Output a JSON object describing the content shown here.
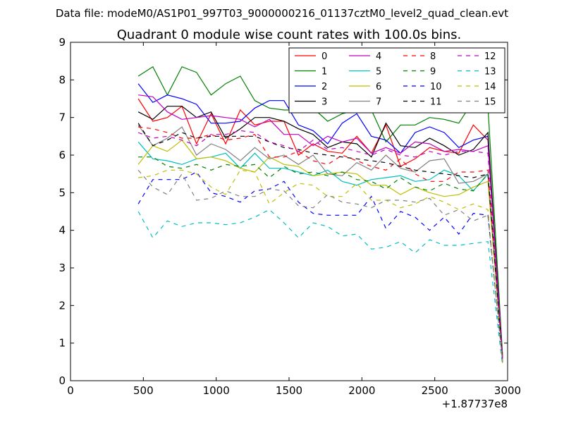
{
  "figure": {
    "suptitle": "Data file: modeM0/AS1P01_997T03_9000000216_01137cztM0_level2_quad_clean.evt"
  },
  "chart_data": {
    "type": "line",
    "title": "Quadrant 0 module wise count rates with 100.0s bins.",
    "xlabel": "",
    "ylabel": "",
    "x_offset_label": "+1.87737e8",
    "xlim": [
      0,
      3000
    ],
    "ylim": [
      0,
      9
    ],
    "xticks": [
      0,
      500,
      1000,
      1500,
      2000,
      2500,
      3000
    ],
    "yticks": [
      0,
      1,
      2,
      3,
      4,
      5,
      6,
      7,
      8,
      9
    ],
    "grid": false,
    "legend_position": "top-right",
    "legend_columns": 4,
    "x": [
      465,
      565,
      665,
      765,
      865,
      965,
      1065,
      1165,
      1265,
      1365,
      1465,
      1565,
      1665,
      1765,
      1865,
      1965,
      2065,
      2165,
      2265,
      2365,
      2465,
      2565,
      2665,
      2765,
      2865,
      2965
    ],
    "series": [
      {
        "name": "0",
        "color": "#ff0000",
        "dash": false,
        "values": [
          7.5,
          6.9,
          7.0,
          7.3,
          6.3,
          7.1,
          6.3,
          7.2,
          6.8,
          6.9,
          6.9,
          6.0,
          6.3,
          6.1,
          6.05,
          6.5,
          6.05,
          6.8,
          5.7,
          5.9,
          6.2,
          6.1,
          6.05,
          6.8,
          6.4,
          0.6
        ]
      },
      {
        "name": "1",
        "color": "#008000",
        "dash": false,
        "values": [
          8.1,
          8.35,
          7.6,
          8.35,
          8.2,
          7.6,
          7.9,
          8.1,
          7.45,
          7.25,
          7.2,
          7.2,
          7.25,
          6.9,
          7.1,
          7.2,
          7.2,
          6.35,
          6.8,
          6.8,
          7.0,
          6.95,
          6.85,
          7.45,
          7.3,
          0.7
        ]
      },
      {
        "name": "2",
        "color": "#0000ff",
        "dash": false,
        "values": [
          7.9,
          7.4,
          7.6,
          7.5,
          7.35,
          6.85,
          6.85,
          6.9,
          7.25,
          7.45,
          7.45,
          6.8,
          6.65,
          6.3,
          6.85,
          7.1,
          6.5,
          6.4,
          6.05,
          6.6,
          6.75,
          6.6,
          6.2,
          6.4,
          6.5,
          0.5
        ]
      },
      {
        "name": "3",
        "color": "#000000",
        "dash": false,
        "values": [
          7.15,
          6.95,
          7.3,
          7.3,
          7.0,
          7.15,
          6.45,
          6.7,
          7.0,
          7.0,
          6.9,
          6.7,
          6.55,
          6.2,
          6.35,
          6.3,
          5.95,
          6.85,
          6.25,
          6.2,
          6.45,
          6.25,
          6.0,
          6.15,
          6.6,
          0.6
        ]
      },
      {
        "name": "4",
        "color": "#bf00bf",
        "dash": false,
        "values": [
          7.6,
          7.55,
          7.15,
          6.95,
          7.0,
          7.05,
          7.0,
          6.95,
          6.75,
          6.95,
          6.55,
          6.55,
          6.25,
          6.5,
          6.35,
          6.45,
          6.05,
          6.2,
          6.05,
          6.35,
          6.3,
          6.1,
          6.15,
          6.1,
          6.25,
          0.65
        ]
      },
      {
        "name": "5",
        "color": "#00bfbf",
        "dash": false,
        "values": [
          6.35,
          5.9,
          5.85,
          5.75,
          5.9,
          5.95,
          6.05,
          5.65,
          6.05,
          5.65,
          5.65,
          5.55,
          5.45,
          5.6,
          5.3,
          5.2,
          5.35,
          5.4,
          5.45,
          5.3,
          5.35,
          5.6,
          5.45,
          5.05,
          5.5,
          0.55
        ]
      },
      {
        "name": "6",
        "color": "#bfbf00",
        "dash": false,
        "values": [
          5.75,
          6.25,
          6.1,
          6.4,
          5.9,
          5.95,
          5.85,
          5.65,
          5.55,
          5.95,
          5.75,
          5.7,
          5.45,
          5.5,
          5.55,
          5.5,
          5.2,
          5.2,
          4.95,
          5.15,
          5.0,
          4.9,
          4.95,
          5.15,
          5.3,
          0.55
        ]
      },
      {
        "name": "7",
        "color": "#808080",
        "dash": false,
        "values": [
          6.8,
          6.25,
          6.45,
          6.75,
          6.0,
          6.3,
          6.15,
          5.85,
          6.2,
          5.9,
          6.0,
          5.75,
          6.0,
          5.5,
          5.45,
          5.8,
          5.6,
          6.0,
          5.65,
          5.55,
          5.85,
          5.9,
          5.25,
          5.3,
          5.5,
          0.55
        ]
      },
      {
        "name": "8",
        "color": "#ff0000",
        "dash": true,
        "values": [
          6.75,
          6.7,
          6.6,
          6.45,
          6.45,
          6.55,
          6.4,
          6.45,
          6.55,
          5.95,
          5.95,
          6.1,
          5.85,
          5.75,
          6.0,
          5.85,
          5.7,
          5.6,
          5.9,
          5.5,
          5.3,
          5.3,
          5.55,
          5.55,
          5.6,
          0.6
        ]
      },
      {
        "name": "9",
        "color": "#008000",
        "dash": true,
        "values": [
          5.95,
          5.95,
          5.7,
          5.65,
          5.75,
          5.6,
          5.75,
          5.7,
          5.75,
          5.4,
          5.7,
          5.5,
          5.55,
          5.45,
          5.55,
          5.35,
          5.3,
          5.1,
          5.4,
          5.15,
          5.05,
          5.25,
          5.1,
          5.05,
          5.5,
          0.55
        ]
      },
      {
        "name": "10",
        "color": "#0000ff",
        "dash": true,
        "values": [
          4.7,
          5.35,
          5.35,
          5.35,
          5.55,
          5.0,
          4.9,
          4.75,
          5.05,
          5.1,
          5.3,
          4.75,
          4.45,
          4.4,
          4.4,
          4.4,
          4.9,
          4.05,
          4.5,
          4.35,
          4.0,
          4.35,
          3.9,
          4.45,
          4.4,
          0.45
        ]
      },
      {
        "name": "11",
        "color": "#000000",
        "dash": true,
        "values": [
          6.85,
          6.25,
          6.4,
          6.6,
          6.45,
          6.5,
          6.5,
          6.5,
          6.5,
          6.35,
          6.2,
          6.15,
          6.05,
          6.0,
          5.95,
          5.9,
          5.85,
          5.8,
          5.7,
          5.6,
          5.55,
          5.5,
          5.45,
          5.4,
          5.5,
          0.55
        ]
      },
      {
        "name": "12",
        "color": "#bf00bf",
        "dash": true,
        "values": [
          6.6,
          6.45,
          6.5,
          6.4,
          6.25,
          6.55,
          6.55,
          6.65,
          6.6,
          6.35,
          6.25,
          6.1,
          6.4,
          6.15,
          6.2,
          6.1,
          6.0,
          6.15,
          6.0,
          5.95,
          6.1,
          6.0,
          6.1,
          6.1,
          6.05,
          0.6
        ]
      },
      {
        "name": "13",
        "color": "#00bfbf",
        "dash": true,
        "values": [
          4.5,
          3.8,
          4.25,
          4.1,
          4.2,
          4.2,
          4.15,
          4.2,
          4.35,
          4.55,
          4.2,
          3.8,
          4.2,
          4.1,
          3.85,
          3.9,
          3.5,
          3.55,
          3.7,
          3.4,
          3.75,
          3.6,
          3.6,
          3.65,
          3.7,
          0.4
        ]
      },
      {
        "name": "14",
        "color": "#bfbf00",
        "dash": true,
        "values": [
          5.4,
          5.45,
          5.6,
          5.6,
          5.5,
          5.15,
          4.95,
          5.6,
          5.55,
          4.7,
          5.0,
          5.25,
          5.2,
          4.9,
          4.9,
          5.25,
          4.8,
          4.8,
          4.6,
          4.7,
          4.9,
          4.75,
          4.55,
          4.7,
          4.55,
          0.45
        ]
      },
      {
        "name": "15",
        "color": "#808080",
        "dash": true,
        "values": [
          5.6,
          5.15,
          4.95,
          5.5,
          4.8,
          4.85,
          5.05,
          4.9,
          4.9,
          5.1,
          5.05,
          4.65,
          4.6,
          4.95,
          4.75,
          4.7,
          4.6,
          4.8,
          4.8,
          4.75,
          4.85,
          4.4,
          4.55,
          4.25,
          4.4,
          0.5
        ]
      }
    ]
  }
}
